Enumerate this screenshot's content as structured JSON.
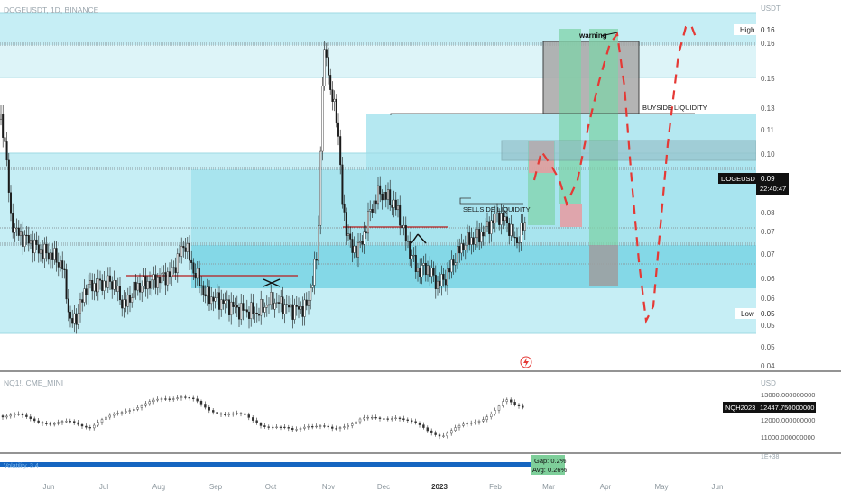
{
  "main_chart": {
    "symbol_label": "DOGEUSDT, 1D, BINANCE",
    "currency_label": "USDT",
    "y_ticks": [
      "0.16",
      "0.15",
      "0.13",
      "0.11",
      "0.10",
      "0.09",
      "0.08",
      "0.07",
      "0.07",
      "0.06",
      "0.06",
      "0.05",
      "0.05",
      "0.04",
      "0.04"
    ],
    "y_tick_values": [
      0.16,
      0.15,
      0.13,
      0.11,
      0.1,
      0.09,
      0.08,
      0.07,
      0.07,
      0.06,
      0.06,
      0.05,
      0.05,
      0.04,
      0.04
    ],
    "high_label": "High",
    "high_value": "0.16",
    "low_label": "Low",
    "low_value": "0.05",
    "price_badge_symbol": "DOGEUSDT",
    "price_badge_value": "0.09",
    "price_badge_timer": "22:40:47",
    "annotations": {
      "warning": "warning",
      "buyside": "BUYSIDE LIQUIDITY",
      "sellside": "SELLSIDE LIQUIDITY"
    }
  },
  "sub_chart": {
    "symbol_label": "NQ1!, CME_MINI",
    "currency_label": "USD",
    "y_ticks": [
      "13000.000000000",
      "12000.000000000",
      "11000.000000000"
    ],
    "y_tick_values": [
      13000,
      12000,
      11000
    ],
    "price_badge_symbol": "NQH2023",
    "price_badge_value": "12447.750000000"
  },
  "third_pane": {
    "label": "Volatility, 3.4",
    "right_tick": "1E+38",
    "gap_text": "Gap: 0.2%",
    "avg_text": "Avg: 0.26%"
  },
  "x_axis": {
    "labels": [
      "Jun",
      "Jul",
      "Aug",
      "Sep",
      "Oct",
      "Nov",
      "Dec",
      "2023",
      "Feb",
      "Mar",
      "Apr",
      "May",
      "Jun"
    ]
  },
  "colors": {
    "zone_light": "#c6eef5",
    "zone_mid": "#a8e4ee",
    "zone_dark": "#7fd6e6",
    "candle": "#1a1a1a",
    "projection": "#e53935",
    "green_zone": "#7fd3a8",
    "red_zone": "#e99aa0",
    "gray_box": "#9e9e9e",
    "sellside_line": "#b71c1c",
    "volatility_bar": "#1565c0",
    "gap_badge": "#7ecf9a"
  },
  "chart_data": [
    {
      "type": "candlestick",
      "title": "DOGEUSDT, 1D, BINANCE",
      "ylabel": "USDT",
      "x_range": [
        "Jun",
        "Jun"
      ],
      "ylim": [
        0.04,
        0.17
      ],
      "series_approx": [
        {
          "x": "Jun",
          "value": 0.088
        },
        {
          "x": "Jun",
          "value": 0.064
        },
        {
          "x": "Jul",
          "value": 0.068
        },
        {
          "x": "Aug",
          "value": 0.072
        },
        {
          "x": "Aug",
          "value": 0.065
        },
        {
          "x": "Sep",
          "value": 0.061
        },
        {
          "x": "Oct",
          "value": 0.06
        },
        {
          "x": "Oct",
          "value": 0.062
        },
        {
          "x": "Nov",
          "value": 0.15
        },
        {
          "x": "Nov",
          "value": 0.08
        },
        {
          "x": "Dec",
          "value": 0.105
        },
        {
          "x": "Dec",
          "value": 0.075
        },
        {
          "x": "2023",
          "value": 0.072
        },
        {
          "x": "Feb",
          "value": 0.093
        },
        {
          "x": "Feb",
          "value": 0.088
        }
      ],
      "last_value": 0.09,
      "high": 0.16,
      "low": 0.05
    },
    {
      "type": "line",
      "title": "NQ1!, CME_MINI",
      "ylabel": "USD",
      "ylim": [
        10700,
        13500
      ],
      "series_approx": [
        {
          "x": "Jun",
          "value": 12000
        },
        {
          "x": "Jul",
          "value": 11600
        },
        {
          "x": "Aug",
          "value": 12900
        },
        {
          "x": "Sep",
          "value": 12100
        },
        {
          "x": "Oct",
          "value": 11300
        },
        {
          "x": "Nov",
          "value": 11800
        },
        {
          "x": "Dec",
          "value": 12000
        },
        {
          "x": "2023",
          "value": 11100
        },
        {
          "x": "Feb",
          "value": 12700
        },
        {
          "x": "Feb",
          "value": 12447.75
        }
      ],
      "last_value": 12447.75
    }
  ]
}
